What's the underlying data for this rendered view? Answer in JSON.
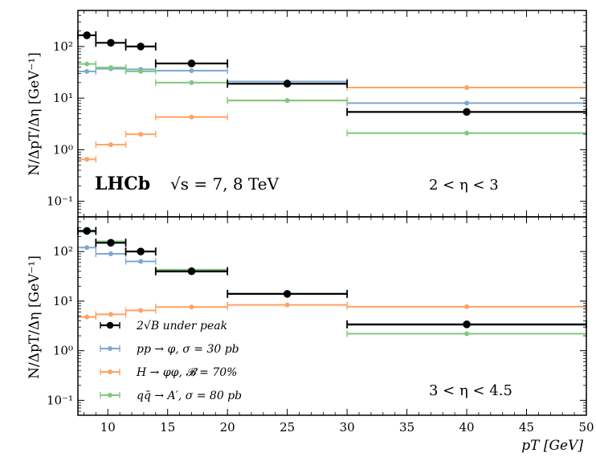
{
  "figure": {
    "ylabel": "N/ΔpT/Δη [GeV⁻¹]",
    "xlabel": "pT [GeV]"
  },
  "colors": {
    "background": "#000000",
    "pp_phi": "#7ea8d2",
    "H_phiphi": "#ffa262",
    "qq_A": "#7ec97e",
    "frame": "#000000"
  },
  "legend": [
    {
      "key": "background",
      "label": "2√B under peak"
    },
    {
      "key": "pp_phi",
      "label": "pp → φ,  σ = 30 pb"
    },
    {
      "key": "H_phiphi",
      "label": "H → φφ,  𝓑 = 70%"
    },
    {
      "key": "qq_A",
      "label": "qq̄ → A′,  σ = 80 pb"
    }
  ],
  "chart_data": [
    {
      "type": "scatter",
      "panel": "top",
      "annotation_experiment": "LHCb",
      "annotation_energy": "√s = 7, 8 TeV",
      "annotation_region": "2 < η < 3",
      "xlabel": "",
      "ylabel": "N/ΔpT/Δη [GeV⁻¹]",
      "xlim": [
        7.5,
        50
      ],
      "ylim": [
        0.05,
        500
      ],
      "yscale": "log",
      "y_ticks": [
        {
          "v": 0.1,
          "label": "10⁻¹"
        },
        {
          "v": 1,
          "label": "10⁰"
        },
        {
          "v": 10,
          "label": "10¹"
        },
        {
          "v": 100,
          "label": "10²"
        }
      ],
      "x_ticks": [
        10,
        15,
        20,
        25,
        30,
        35,
        40,
        45,
        50
      ],
      "x_tick_labels_shown": false,
      "grid": false,
      "series": [
        {
          "key": "pp_phi",
          "points": [
            {
              "x": 8.25,
              "y": 33,
              "xlo": 7.5,
              "xhi": 9.0
            },
            {
              "x": 10.25,
              "y": 37,
              "xlo": 9.0,
              "xhi": 11.5
            },
            {
              "x": 12.75,
              "y": 36,
              "xlo": 11.5,
              "xhi": 14.0
            },
            {
              "x": 17.0,
              "y": 34,
              "xlo": 14.0,
              "xhi": 20.0
            },
            {
              "x": 25.0,
              "y": 21,
              "xlo": 20.0,
              "xhi": 30.0
            },
            {
              "x": 40.0,
              "y": 8,
              "xlo": 30.0,
              "xhi": 50.0
            }
          ]
        },
        {
          "key": "H_phiphi",
          "points": [
            {
              "x": 8.25,
              "y": 0.65,
              "xlo": 7.5,
              "xhi": 9.0
            },
            {
              "x": 10.25,
              "y": 1.25,
              "xlo": 9.0,
              "xhi": 11.5
            },
            {
              "x": 12.75,
              "y": 2.0,
              "xlo": 11.5,
              "xhi": 14.0
            },
            {
              "x": 17.0,
              "y": 4.3,
              "xlo": 14.0,
              "xhi": 20.0
            },
            {
              "x": 25.0,
              "y": 9.0,
              "xlo": 20.0,
              "xhi": 30.0
            },
            {
              "x": 40.0,
              "y": 16,
              "xlo": 30.0,
              "xhi": 50.0
            }
          ]
        },
        {
          "key": "qq_A",
          "points": [
            {
              "x": 8.25,
              "y": 46,
              "xlo": 7.5,
              "xhi": 9.0
            },
            {
              "x": 10.25,
              "y": 39,
              "xlo": 9.0,
              "xhi": 11.5
            },
            {
              "x": 12.75,
              "y": 33,
              "xlo": 11.5,
              "xhi": 14.0
            },
            {
              "x": 17.0,
              "y": 20,
              "xlo": 14.0,
              "xhi": 20.0
            },
            {
              "x": 25.0,
              "y": 9.0,
              "xlo": 20.0,
              "xhi": 30.0
            },
            {
              "x": 40.0,
              "y": 2.1,
              "xlo": 30.0,
              "xhi": 50.0
            }
          ]
        },
        {
          "key": "background",
          "points": [
            {
              "x": 8.25,
              "y": 165,
              "xlo": 7.5,
              "xhi": 9.0
            },
            {
              "x": 10.25,
              "y": 118,
              "xlo": 9.0,
              "xhi": 11.5
            },
            {
              "x": 12.75,
              "y": 100,
              "xlo": 11.5,
              "xhi": 14.0
            },
            {
              "x": 17.0,
              "y": 47,
              "xlo": 14.0,
              "xhi": 20.0
            },
            {
              "x": 25.0,
              "y": 19,
              "xlo": 20.0,
              "xhi": 30.0
            },
            {
              "x": 40.0,
              "y": 5.4,
              "xlo": 30.0,
              "xhi": 50.0
            }
          ]
        }
      ]
    },
    {
      "type": "scatter",
      "panel": "bottom",
      "annotation_region": "3 < η < 4.5",
      "xlabel": "pT [GeV]",
      "ylabel": "N/ΔpT/Δη [GeV⁻¹]",
      "xlim": [
        7.5,
        50
      ],
      "ylim": [
        0.05,
        500
      ],
      "yscale": "log",
      "y_ticks": [
        {
          "v": 0.1,
          "label": "10⁻¹"
        },
        {
          "v": 1,
          "label": "10⁰"
        },
        {
          "v": 10,
          "label": "10¹"
        },
        {
          "v": 100,
          "label": "10²"
        }
      ],
      "x_ticks": [
        10,
        15,
        20,
        25,
        30,
        35,
        40,
        45,
        50
      ],
      "x_tick_labels_shown": true,
      "grid": false,
      "legend_position": "lower-left",
      "series": [
        {
          "key": "pp_phi",
          "points": [
            {
              "x": 8.25,
              "y": 120,
              "xlo": 7.5,
              "xhi": 9.0
            },
            {
              "x": 10.25,
              "y": 90,
              "xlo": 9.0,
              "xhi": 11.5
            },
            {
              "x": 12.75,
              "y": 63,
              "xlo": 11.5,
              "xhi": 14.0
            },
            {
              "x": 17.0,
              "y": 39,
              "xlo": 14.0,
              "xhi": 20.0
            },
            {
              "x": 25.0,
              "y": 14,
              "xlo": 20.0,
              "xhi": 30.0
            },
            {
              "x": 40.0,
              "y": 3.3,
              "xlo": 30.0,
              "xhi": 50.0
            }
          ]
        },
        {
          "key": "H_phiphi",
          "points": [
            {
              "x": 8.25,
              "y": 4.8,
              "xlo": 7.5,
              "xhi": 9.0
            },
            {
              "x": 10.25,
              "y": 5.4,
              "xlo": 9.0,
              "xhi": 11.5
            },
            {
              "x": 12.75,
              "y": 6.5,
              "xlo": 11.5,
              "xhi": 14.0
            },
            {
              "x": 17.0,
              "y": 7.6,
              "xlo": 14.0,
              "xhi": 20.0
            },
            {
              "x": 25.0,
              "y": 8.4,
              "xlo": 20.0,
              "xhi": 30.0
            },
            {
              "x": 40.0,
              "y": 7.7,
              "xlo": 30.0,
              "xhi": 50.0
            }
          ]
        },
        {
          "key": "qq_A",
          "points": [
            {
              "x": 8.25,
              "y": 250,
              "xlo": 7.5,
              "xhi": 9.0
            },
            {
              "x": 10.25,
              "y": 160,
              "xlo": 9.0,
              "xhi": 11.5
            },
            {
              "x": 12.75,
              "y": 100,
              "xlo": 11.5,
              "xhi": 14.0
            },
            {
              "x": 17.0,
              "y": 43,
              "xlo": 14.0,
              "xhi": 20.0
            },
            {
              "x": 25.0,
              "y": 14,
              "xlo": 20.0,
              "xhi": 30.0
            },
            {
              "x": 40.0,
              "y": 2.2,
              "xlo": 30.0,
              "xhi": 50.0
            }
          ]
        },
        {
          "key": "background",
          "points": [
            {
              "x": 8.25,
              "y": 260,
              "xlo": 7.5,
              "xhi": 9.0
            },
            {
              "x": 10.25,
              "y": 150,
              "xlo": 9.0,
              "xhi": 11.5
            },
            {
              "x": 12.75,
              "y": 100,
              "xlo": 11.5,
              "xhi": 14.0
            },
            {
              "x": 17.0,
              "y": 40,
              "xlo": 14.0,
              "xhi": 20.0
            },
            {
              "x": 25.0,
              "y": 14,
              "xlo": 20.0,
              "xhi": 30.0
            },
            {
              "x": 40.0,
              "y": 3.4,
              "xlo": 30.0,
              "xhi": 50.0
            }
          ]
        }
      ]
    }
  ]
}
